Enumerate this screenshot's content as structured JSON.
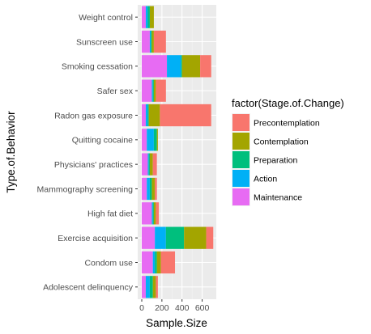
{
  "chart_data": {
    "type": "bar",
    "orientation": "horizontal",
    "stacked": true,
    "xlabel": "Sample.Size",
    "ylabel": "Type.of.Behavior",
    "xlim": [
      0,
      720
    ],
    "x_ticks": [
      0,
      200,
      400,
      600
    ],
    "grid": true,
    "legend_position": "right",
    "legend_title": "factor(Stage.of.Change)",
    "categories": [
      "Adolescent delinquency",
      "Condom use",
      "Exercise acquisition",
      "High fat diet",
      "Mammography screening",
      "Physicians' practices",
      "Quitting cocaine",
      "Radon gas exposure",
      "Safer sex",
      "Smoking cessation",
      "Sunscreen use",
      "Weight control"
    ],
    "series": [
      {
        "name": "Maintenance",
        "color": "#E76BF3",
        "values": [
          40,
          110,
          130,
          100,
          50,
          60,
          50,
          40,
          100,
          250,
          80,
          40
        ]
      },
      {
        "name": "Action",
        "color": "#00B0F6",
        "values": [
          40,
          20,
          110,
          10,
          30,
          10,
          70,
          20,
          10,
          140,
          10,
          20
        ]
      },
      {
        "name": "Preparation",
        "color": "#00BF7D",
        "values": [
          30,
          20,
          180,
          10,
          20,
          10,
          30,
          10,
          10,
          10,
          10,
          20
        ]
      },
      {
        "name": "Contemplation",
        "color": "#A3A500",
        "values": [
          30,
          40,
          220,
          20,
          30,
          30,
          10,
          110,
          20,
          180,
          20,
          40
        ]
      },
      {
        "name": "Precontemplation",
        "color": "#F8766D",
        "values": [
          20,
          140,
          70,
          30,
          20,
          40,
          0,
          510,
          100,
          110,
          120,
          0
        ]
      }
    ],
    "legend_order": [
      "Precontemplation",
      "Contemplation",
      "Preparation",
      "Action",
      "Maintenance"
    ]
  }
}
